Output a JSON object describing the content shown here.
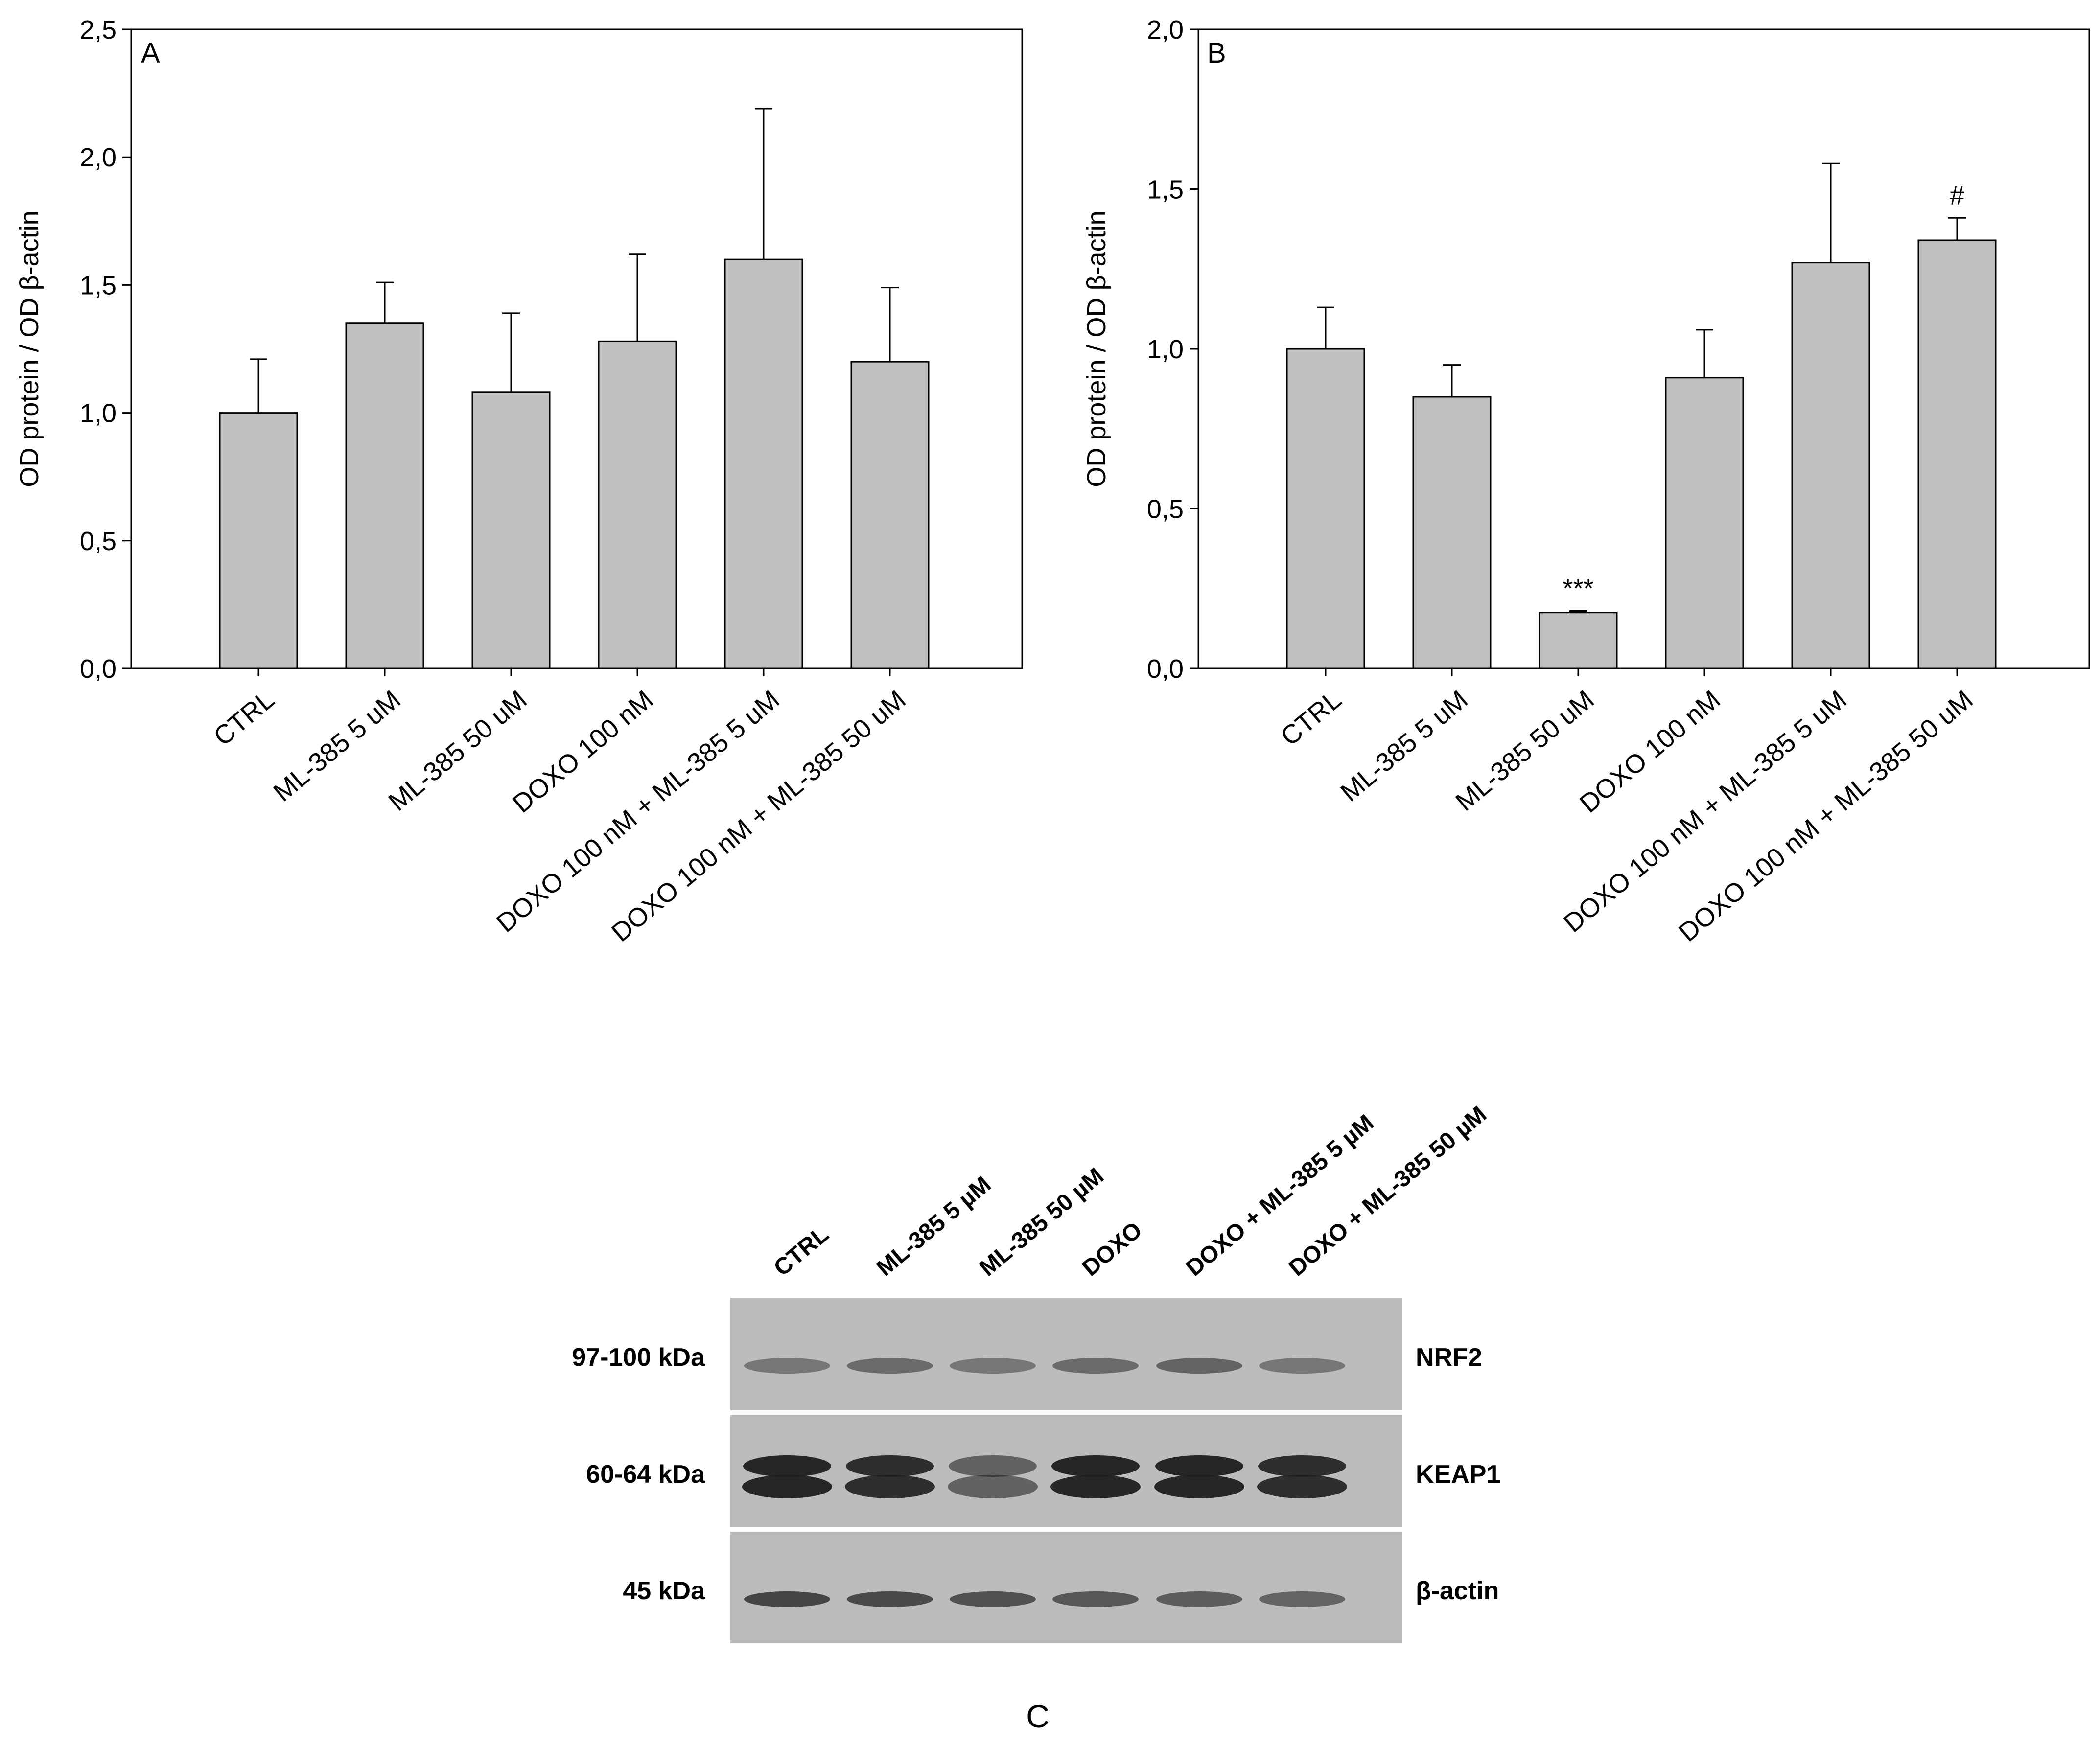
{
  "colors": {
    "bar_fill": "#c0c0c0",
    "axis": "#000000",
    "blot_background": "#bcbcbc",
    "band_dark": "#1e1e1e"
  },
  "chart_data": [
    {
      "panel": "A",
      "type": "bar",
      "ylabel": "OD protein / OD β-actin",
      "categories": [
        "CTRL",
        "ML-385 5 uM",
        "ML-385 50 uM",
        "DOXO 100 nM",
        "DOXO 100 nM + ML-385 5 uM",
        "DOXO 100 nM + ML-385 50 uM"
      ],
      "values": [
        1.0,
        1.35,
        1.08,
        1.28,
        1.6,
        1.2
      ],
      "error_upper": [
        0.21,
        0.16,
        0.31,
        0.34,
        0.59,
        0.29
      ],
      "ylim": [
        0,
        2.5
      ],
      "yticks": [
        "0,0",
        "0,5",
        "1,0",
        "1,5",
        "2,0",
        "2,5"
      ],
      "ytick_values": [
        0,
        0.5,
        1.0,
        1.5,
        2.0,
        2.5
      ],
      "annotations": [
        "",
        "",
        "",
        "",
        "",
        ""
      ],
      "grid": false
    },
    {
      "panel": "B",
      "type": "bar",
      "ylabel": "OD protein / OD β-actin",
      "categories": [
        "CTRL",
        "ML-385 5 uM",
        "ML-385 50 uM",
        "DOXO 100 nM",
        "DOXO 100 nM + ML-385 5 uM",
        "DOXO 100 nM + ML-385 50 uM"
      ],
      "values": [
        1.0,
        0.85,
        0.175,
        0.91,
        1.27,
        1.34
      ],
      "error_upper": [
        0.13,
        0.1,
        0.005,
        0.15,
        0.31,
        0.07
      ],
      "ylim": [
        0,
        2.0
      ],
      "yticks": [
        "0,0",
        "0,5",
        "1,0",
        "1,5",
        "2,0"
      ],
      "ytick_values": [
        0,
        0.5,
        1.0,
        1.5,
        2.0
      ],
      "annotations": [
        "",
        "",
        "***",
        "",
        "",
        "#"
      ],
      "grid": false
    }
  ],
  "blot": {
    "panel": "C",
    "lanes": [
      "CTRL",
      "ML-385 5 µM",
      "ML-385 50 µM",
      "DOXO",
      "DOXO + ML-385 5 µM",
      "DOXO + ML-385 50 µM"
    ],
    "rows": [
      {
        "size": "97-100 kDa",
        "protein": "NRF2",
        "band_strength": [
          0.55,
          0.65,
          0.55,
          0.65,
          0.7,
          0.55
        ],
        "doublet": false
      },
      {
        "size": "60-64 kDa",
        "protein": "KEAP1",
        "band_strength": [
          1.0,
          0.95,
          0.6,
          1.0,
          1.0,
          0.95
        ],
        "doublet": true
      },
      {
        "size": "45 kDa",
        "protein": "β-actin",
        "band_strength": [
          0.95,
          0.9,
          0.85,
          0.8,
          0.75,
          0.7
        ],
        "doublet": false
      }
    ]
  }
}
